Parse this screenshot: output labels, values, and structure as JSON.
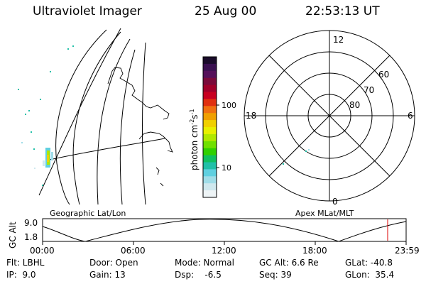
{
  "header": {
    "instrument": "Ultraviolet Imager",
    "date": "25 Aug 00",
    "time": "22:53:13 UT"
  },
  "colorbar": {
    "label": "photon cm",
    "label_exp1": "-2",
    "label_mid": "s",
    "label_exp2": "-1",
    "tick_high": "100",
    "tick_low": "10",
    "colors": [
      "#1a0b2a",
      "#3a1050",
      "#55105a",
      "#7a0a3a",
      "#a0002a",
      "#c80020",
      "#e03010",
      "#f07010",
      "#f0a000",
      "#f0d000",
      "#e8f000",
      "#b0e800",
      "#70e000",
      "#30d000",
      "#10c060",
      "#20c0a8",
      "#60d0e0",
      "#a0dde8",
      "#cfe8ee",
      "#eef4f6"
    ]
  },
  "polar_plot": {
    "label_top": "12",
    "label_left": "18",
    "label_right": "6",
    "label_bottom": "0",
    "ring_labels": [
      "60",
      "70",
      "80"
    ]
  },
  "map_label": "Geographic Lat/Lon",
  "polar_label": "Apex MLat/MLT",
  "altitude_strip": {
    "ylabel": "GC Alt",
    "ytick_high": "9.0",
    "ytick_low": "1.8",
    "xticks": [
      "00:00",
      "06:00",
      "12:00",
      "18:00",
      "23:59"
    ],
    "marker_color": "#dd0000",
    "curve_color": "#000000"
  },
  "info": {
    "flt": "Flt: LBHL",
    "door": "Door: Open",
    "mode": "Mode: Normal",
    "gcalt": "GC Alt: 6.6 Re",
    "glat": "GLat: -40.8",
    "ip": "IP:  9.0",
    "gain": "Gain: 13",
    "dsp": "Dsp:    -6.5",
    "seq": "Seq: 39",
    "glon": "GLon:  35.4"
  }
}
